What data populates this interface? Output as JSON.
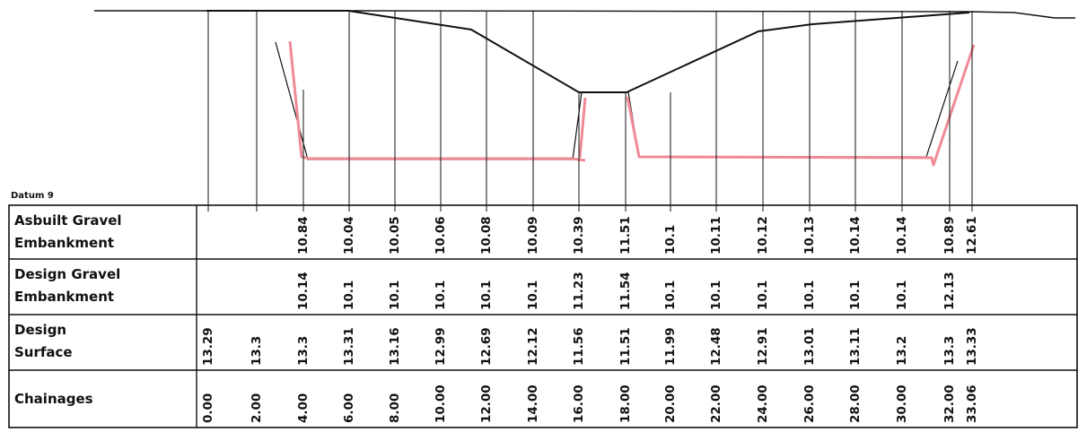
{
  "datum_label": "Datum 9",
  "rows": [
    {
      "key": "asbuilt",
      "label_lines": [
        "Asbuilt Gravel",
        "Embankment"
      ]
    },
    {
      "key": "design_gravel",
      "label_lines": [
        "Design Gravel",
        "Embankment"
      ]
    },
    {
      "key": "design_surface",
      "label_lines": [
        "Design",
        "Surface"
      ]
    },
    {
      "key": "chainages",
      "label_lines": [
        "Chainages"
      ]
    }
  ],
  "chart_data": {
    "type": "table",
    "chainages": [
      "0.00",
      "2.00",
      "4.00",
      "6.00",
      "8.00",
      "10.00",
      "12.00",
      "14.00",
      "16.00",
      "18.00",
      "20.00",
      "22.00",
      "24.00",
      "26.00",
      "28.00",
      "30.00",
      "32.00",
      "33.06"
    ],
    "design_surface": [
      "13.29",
      "13.3",
      "13.3",
      "13.31",
      "13.16",
      "12.99",
      "12.69",
      "12.12",
      "11.56",
      "11.51",
      "11.99",
      "12.48",
      "12.91",
      "13.01",
      "13.11",
      "13.2",
      "13.3",
      "13.33"
    ],
    "design_gravel_embankment": [
      "",
      "",
      "10.14",
      "10.1",
      "10.1",
      "10.1",
      "10.1",
      "10.1",
      "11.23",
      "11.54",
      "10.1",
      "10.1",
      "10.1",
      "10.1",
      "10.1",
      "10.1",
      "12.13",
      ""
    ],
    "asbuilt_gravel_embankment": [
      "",
      "",
      "10.84",
      "10.04",
      "10.05",
      "10.06",
      "10.08",
      "10.09",
      "10.39",
      "11.51",
      "10.1",
      "10.11",
      "10.12",
      "10.13",
      "10.14",
      "10.14",
      "10.89",
      "12.61"
    ],
    "colors": {
      "line": "#111111",
      "asbuilt_trace": "#f08a96"
    }
  }
}
